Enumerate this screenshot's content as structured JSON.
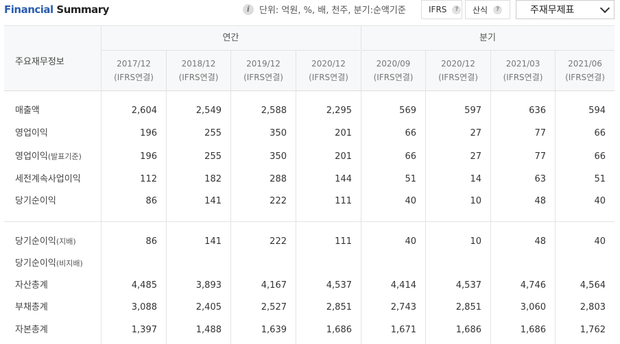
{
  "header": {
    "title_part1": "Financial",
    "title_part2": "Summary",
    "unit_text": "단위: 억원, %, 배, 천주, 분기:순액기준",
    "ifrs_label": "IFRS",
    "formula_label": "산식",
    "help_glyph": "?",
    "dropdown_value": "주재무제표"
  },
  "table": {
    "row_header_title": "주요재무정보",
    "groups": [
      "연간",
      "분기"
    ],
    "columns": [
      {
        "period": "2017/12",
        "basis": "(IFRS연결)"
      },
      {
        "period": "2018/12",
        "basis": "(IFRS연결)"
      },
      {
        "period": "2019/12",
        "basis": "(IFRS연결)"
      },
      {
        "period": "2020/12",
        "basis": "(IFRS연결)"
      },
      {
        "period": "2020/09",
        "basis": "(IFRS연결)"
      },
      {
        "period": "2020/12",
        "basis": "(IFRS연결)"
      },
      {
        "period": "2021/03",
        "basis": "(IFRS연결)"
      },
      {
        "period": "2021/06",
        "basis": "(IFRS연결)"
      }
    ],
    "rows": [
      {
        "label": "매출액",
        "suffix": "",
        "values": [
          "2,604",
          "2,549",
          "2,588",
          "2,295",
          "569",
          "597",
          "636",
          "594"
        ]
      },
      {
        "label": "영업이익",
        "suffix": "",
        "values": [
          "196",
          "255",
          "350",
          "201",
          "66",
          "27",
          "77",
          "66"
        ]
      },
      {
        "label": "영업이익",
        "suffix": "(발표기준)",
        "values": [
          "196",
          "255",
          "350",
          "201",
          "66",
          "27",
          "77",
          "66"
        ]
      },
      {
        "label": "세전계속사업이익",
        "suffix": "",
        "values": [
          "112",
          "182",
          "288",
          "144",
          "51",
          "14",
          "63",
          "51"
        ]
      },
      {
        "label": "당기순이익",
        "suffix": "",
        "values": [
          "86",
          "141",
          "222",
          "111",
          "40",
          "10",
          "48",
          "40"
        ]
      },
      {
        "label": "당기순이익",
        "suffix": "(지배)",
        "values": [
          "86",
          "141",
          "222",
          "111",
          "40",
          "10",
          "48",
          "40"
        ]
      },
      {
        "label": "당기순이익",
        "suffix": "(비지배)",
        "values": [
          "",
          "",
          "",
          "",
          "",
          "",
          "",
          ""
        ]
      },
      {
        "label": "자산총계",
        "suffix": "",
        "values": [
          "4,485",
          "3,893",
          "4,167",
          "4,537",
          "4,414",
          "4,537",
          "4,746",
          "4,564"
        ]
      },
      {
        "label": "부채총계",
        "suffix": "",
        "values": [
          "3,088",
          "2,405",
          "2,527",
          "2,851",
          "2,743",
          "2,851",
          "3,060",
          "2,803"
        ]
      },
      {
        "label": "자본총계",
        "suffix": "",
        "values": [
          "1,397",
          "1,488",
          "1,639",
          "1,686",
          "1,671",
          "1,686",
          "1,686",
          "1,762"
        ]
      }
    ]
  }
}
